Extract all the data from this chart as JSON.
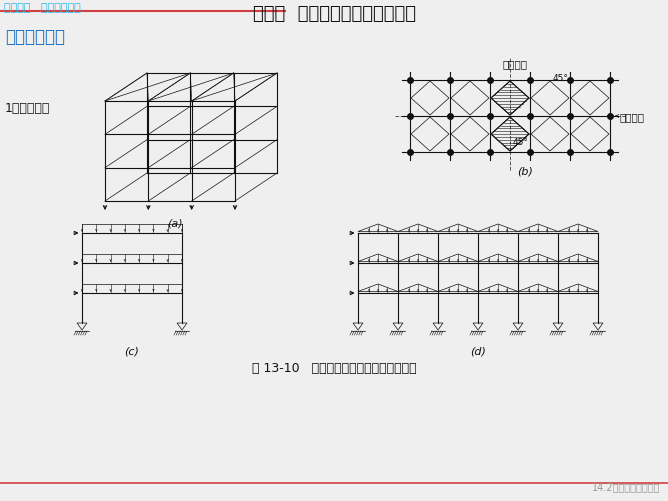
{
  "bg_color": "#efefef",
  "title_text": "第二节  框架结构计算简图及荷载",
  "title_color": "#1a1a1a",
  "title_fontsize": 13,
  "header_text": "第十四章   多层框架结构",
  "header_color": "#29b5e8",
  "header_fontsize": 8,
  "section_text": "一、计算简图",
  "section_color": "#1a6fc4",
  "section_fontsize": 12,
  "sub_text": "1、计算单元",
  "sub_fontsize": 9,
  "label_a": "(a)",
  "label_b": "(b)",
  "label_c": "(c)",
  "label_d": "(d)",
  "caption": "图 13-10   框架结构的计算单元和计算简图",
  "caption_fontsize": 9,
  "footer_text": "14.2框架结构计算简图",
  "footer_color": "#999999",
  "footer_fontsize": 7,
  "line_color": "#111111",
  "red_line_color": "#d04040",
  "blue_text": "#29b5e8",
  "纵向框架": "纵向框架",
  "横向框架": "横向框架",
  "45label1": "45°",
  "45label2": "45°"
}
